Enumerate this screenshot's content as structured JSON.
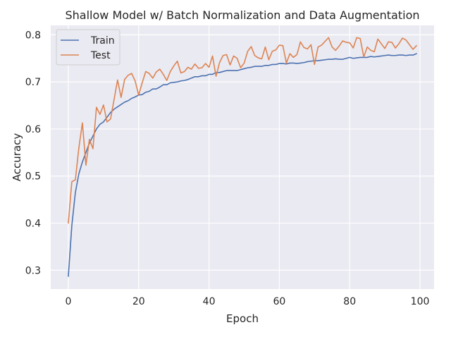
{
  "chart_data": {
    "type": "line",
    "title": "Shallow Model w/ Batch Normalization and Data Augmentation",
    "xlabel": "Epoch",
    "ylabel": "Accuracy",
    "xlim": [
      -5,
      104
    ],
    "ylim": [
      0.26,
      0.82
    ],
    "xticks": [
      0,
      20,
      40,
      60,
      80,
      100
    ],
    "yticks": [
      0.3,
      0.4,
      0.5,
      0.6,
      0.7,
      0.8
    ],
    "grid": true,
    "legend_position": "top-left",
    "x": [
      0,
      1,
      2,
      3,
      4,
      5,
      6,
      7,
      8,
      9,
      10,
      11,
      12,
      13,
      14,
      15,
      16,
      17,
      18,
      19,
      20,
      21,
      22,
      23,
      24,
      25,
      26,
      27,
      28,
      29,
      30,
      31,
      32,
      33,
      34,
      35,
      36,
      37,
      38,
      39,
      40,
      41,
      42,
      43,
      44,
      45,
      46,
      47,
      48,
      49,
      50,
      51,
      52,
      53,
      54,
      55,
      56,
      57,
      58,
      59,
      60,
      61,
      62,
      63,
      64,
      65,
      66,
      67,
      68,
      69,
      70,
      71,
      72,
      73,
      74,
      75,
      76,
      77,
      78,
      79,
      80,
      81,
      82,
      83,
      84,
      85,
      86,
      87,
      88,
      89,
      90,
      91,
      92,
      93,
      94,
      95,
      96,
      97,
      98,
      99
    ],
    "series": [
      {
        "name": "Train",
        "color": "#4c72b0",
        "values": [
          0.287,
          0.395,
          0.465,
          0.505,
          0.53,
          0.55,
          0.57,
          0.585,
          0.6,
          0.61,
          0.615,
          0.625,
          0.635,
          0.642,
          0.647,
          0.652,
          0.657,
          0.66,
          0.665,
          0.668,
          0.672,
          0.673,
          0.678,
          0.68,
          0.685,
          0.685,
          0.689,
          0.694,
          0.694,
          0.698,
          0.699,
          0.7,
          0.702,
          0.703,
          0.705,
          0.708,
          0.711,
          0.711,
          0.713,
          0.713,
          0.716,
          0.716,
          0.72,
          0.72,
          0.722,
          0.724,
          0.724,
          0.724,
          0.724,
          0.726,
          0.728,
          0.73,
          0.731,
          0.733,
          0.733,
          0.733,
          0.735,
          0.735,
          0.737,
          0.737,
          0.739,
          0.739,
          0.738,
          0.74,
          0.74,
          0.739,
          0.74,
          0.741,
          0.743,
          0.744,
          0.745,
          0.745,
          0.746,
          0.747,
          0.748,
          0.748,
          0.749,
          0.748,
          0.748,
          0.75,
          0.752,
          0.75,
          0.751,
          0.752,
          0.752,
          0.752,
          0.754,
          0.753,
          0.754,
          0.755,
          0.756,
          0.757,
          0.756,
          0.756,
          0.757,
          0.757,
          0.756,
          0.757,
          0.757,
          0.76
        ]
      },
      {
        "name": "Test",
        "color": "#dd8452",
        "values": [
          0.4,
          0.488,
          0.492,
          0.56,
          0.613,
          0.523,
          0.578,
          0.558,
          0.646,
          0.631,
          0.651,
          0.615,
          0.621,
          0.662,
          0.704,
          0.667,
          0.705,
          0.714,
          0.718,
          0.702,
          0.672,
          0.698,
          0.722,
          0.718,
          0.708,
          0.721,
          0.727,
          0.716,
          0.703,
          0.722,
          0.734,
          0.744,
          0.719,
          0.722,
          0.731,
          0.727,
          0.738,
          0.729,
          0.73,
          0.739,
          0.731,
          0.755,
          0.712,
          0.741,
          0.756,
          0.758,
          0.736,
          0.755,
          0.75,
          0.73,
          0.74,
          0.765,
          0.775,
          0.756,
          0.751,
          0.749,
          0.774,
          0.747,
          0.765,
          0.768,
          0.778,
          0.777,
          0.74,
          0.76,
          0.752,
          0.758,
          0.785,
          0.773,
          0.77,
          0.779,
          0.737,
          0.774,
          0.778,
          0.786,
          0.794,
          0.774,
          0.767,
          0.776,
          0.787,
          0.784,
          0.783,
          0.772,
          0.794,
          0.792,
          0.753,
          0.774,
          0.767,
          0.764,
          0.791,
          0.781,
          0.771,
          0.785,
          0.784,
          0.772,
          0.781,
          0.793,
          0.789,
          0.779,
          0.769,
          0.777
        ]
      }
    ]
  }
}
